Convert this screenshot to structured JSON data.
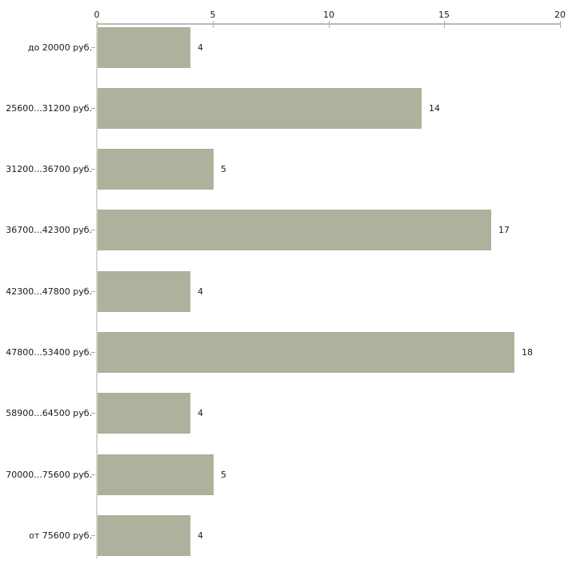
{
  "chart_data": {
    "type": "bar",
    "orientation": "horizontal",
    "title": "",
    "xlabel": "",
    "ylabel": "",
    "categories": [
      "до 20000 руб.",
      "25600...31200 руб.",
      "31200...36700 руб.",
      "36700...42300 руб.",
      "42300...47800 руб.",
      "47800...53400 руб.",
      "58900...64500 руб.",
      "70000...75600 руб.",
      "от 75600 руб."
    ],
    "values": [
      4,
      14,
      5,
      17,
      4,
      18,
      4,
      5,
      4
    ],
    "xlim": [
      0,
      20
    ],
    "x_ticks": [
      "0",
      "5",
      "10",
      "15",
      "20"
    ],
    "x_axis_position": "top",
    "grid": false,
    "legend": "none",
    "bar_value_labels_shown": true,
    "colors": {
      "bar": "#acb29b",
      "tick": "#b0b287",
      "axis_line_top": "#b9b9b9",
      "axis_line_left": "#d6d6d2",
      "text": "#1a1a1a",
      "background": "#ffffff"
    }
  }
}
